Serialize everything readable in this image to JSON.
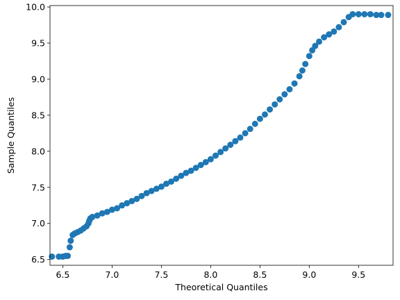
{
  "chart_data": {
    "type": "scatter",
    "title": "",
    "xlabel": "Theoretical Quantiles",
    "ylabel": "Sample Quantiles",
    "xlim": [
      6.37,
      9.85
    ],
    "ylim": [
      6.42,
      10.02
    ],
    "xticks": [
      6.5,
      7.0,
      7.5,
      8.0,
      8.5,
      9.0,
      9.5
    ],
    "xtick_labels": [
      "6.5",
      "7.0",
      "7.5",
      "8.0",
      "8.5",
      "9.0",
      "9.5"
    ],
    "yticks": [
      6.5,
      7.0,
      7.5,
      8.0,
      8.5,
      9.0,
      9.5,
      10.0
    ],
    "ytick_labels": [
      "6.5",
      "7.0",
      "7.5",
      "8.0",
      "8.5",
      "9.0",
      "9.5",
      "10.0"
    ],
    "grid": false,
    "marker_color": "#1f77b4",
    "series": [
      {
        "points": [
          [
            6.39,
            6.54
          ],
          [
            6.46,
            6.54
          ],
          [
            6.5,
            6.54
          ],
          [
            6.53,
            6.55
          ],
          [
            6.55,
            6.55
          ],
          [
            6.57,
            6.67
          ],
          [
            6.58,
            6.76
          ],
          [
            6.6,
            6.84
          ],
          [
            6.62,
            6.86
          ],
          [
            6.65,
            6.88
          ],
          [
            6.68,
            6.9
          ],
          [
            6.71,
            6.93
          ],
          [
            6.74,
            6.96
          ],
          [
            6.76,
            7.0
          ],
          [
            6.77,
            7.04
          ],
          [
            6.78,
            7.07
          ],
          [
            6.8,
            7.09
          ],
          [
            6.85,
            7.11
          ],
          [
            6.9,
            7.14
          ],
          [
            6.95,
            7.16
          ],
          [
            7.0,
            7.19
          ],
          [
            7.05,
            7.21
          ],
          [
            7.1,
            7.25
          ],
          [
            7.15,
            7.28
          ],
          [
            7.2,
            7.31
          ],
          [
            7.25,
            7.34
          ],
          [
            7.3,
            7.38
          ],
          [
            7.35,
            7.42
          ],
          [
            7.4,
            7.45
          ],
          [
            7.45,
            7.48
          ],
          [
            7.5,
            7.51
          ],
          [
            7.55,
            7.55
          ],
          [
            7.6,
            7.58
          ],
          [
            7.65,
            7.62
          ],
          [
            7.7,
            7.66
          ],
          [
            7.75,
            7.7
          ],
          [
            7.8,
            7.73
          ],
          [
            7.85,
            7.77
          ],
          [
            7.9,
            7.81
          ],
          [
            7.95,
            7.85
          ],
          [
            8.0,
            7.89
          ],
          [
            8.05,
            7.94
          ],
          [
            8.1,
            7.99
          ],
          [
            8.15,
            8.04
          ],
          [
            8.2,
            8.09
          ],
          [
            8.25,
            8.14
          ],
          [
            8.3,
            8.19
          ],
          [
            8.35,
            8.25
          ],
          [
            8.4,
            8.31
          ],
          [
            8.45,
            8.38
          ],
          [
            8.5,
            8.45
          ],
          [
            8.55,
            8.51
          ],
          [
            8.6,
            8.58
          ],
          [
            8.65,
            8.65
          ],
          [
            8.7,
            8.72
          ],
          [
            8.75,
            8.79
          ],
          [
            8.8,
            8.86
          ],
          [
            8.85,
            8.94
          ],
          [
            8.9,
            9.04
          ],
          [
            8.93,
            9.12
          ],
          [
            8.96,
            9.21
          ],
          [
            9.0,
            9.32
          ],
          [
            9.03,
            9.4
          ],
          [
            9.06,
            9.46
          ],
          [
            9.1,
            9.52
          ],
          [
            9.15,
            9.58
          ],
          [
            9.2,
            9.62
          ],
          [
            9.25,
            9.66
          ],
          [
            9.3,
            9.72
          ],
          [
            9.35,
            9.79
          ],
          [
            9.4,
            9.86
          ],
          [
            9.44,
            9.9
          ],
          [
            9.5,
            9.9
          ],
          [
            9.56,
            9.9
          ],
          [
            9.62,
            9.9
          ],
          [
            9.68,
            9.89
          ],
          [
            9.73,
            9.89
          ],
          [
            9.8,
            9.89
          ]
        ]
      }
    ]
  }
}
